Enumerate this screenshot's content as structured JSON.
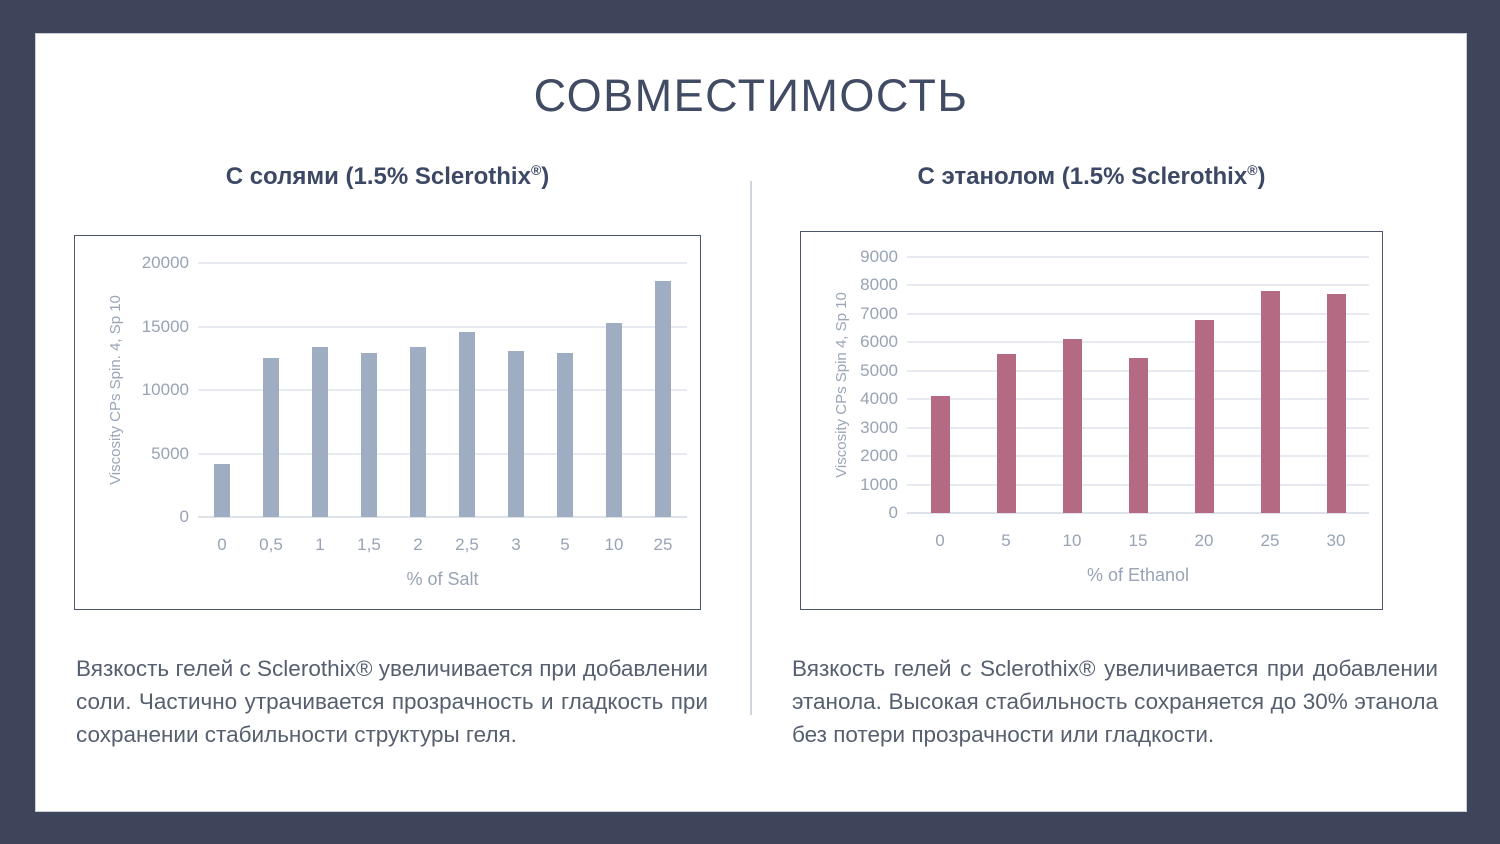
{
  "slide": {
    "title": "СОВМЕСТИМОСТЬ",
    "background_color": "#3e455a",
    "card_color": "#ffffff"
  },
  "panels": [
    {
      "title_main": "С солями (1.5% Sclerothix",
      "title_sup": "®",
      "title_end": ")",
      "description": "Вязкость гелей с Sclerothix® увеличивается при добавлении соли. Частично утрачивается прозрачность и гладкость при сохранении стабильности структуры геля."
    },
    {
      "title_main": "С этанолом (1.5% Sclerothix",
      "title_sup": "®",
      "title_end": ")",
      "description": "Вязкость гелей с Sclerothix® увеличивается при добавлении этанола. Высокая стабильность сохраняется до 30% этанола без потери прозрачности или гладкости."
    }
  ],
  "chart_data": [
    {
      "type": "bar",
      "title": "С солями (1.5% Sclerothix®)",
      "categories": [
        "0",
        "0,5",
        "1",
        "1,5",
        "2",
        "2,5",
        "3",
        "5",
        "10",
        "25"
      ],
      "values": [
        4200,
        12500,
        13350,
        12950,
        13400,
        14600,
        13100,
        12950,
        15300,
        18600
      ],
      "xlabel": "% of Salt",
      "ylabel": "Viscosity CPs Spin. 4, Sp 10",
      "ylim": [
        0,
        20000
      ],
      "ytick_step": 5000,
      "bar_color": "#9fadc2",
      "grid": true,
      "legend": "none"
    },
    {
      "type": "bar",
      "title": "С этанолом (1.5% Sclerothix®)",
      "categories": [
        "0",
        "5",
        "10",
        "15",
        "20",
        "25",
        "30"
      ],
      "values": [
        4100,
        5600,
        6100,
        5450,
        6800,
        7800,
        7700
      ],
      "xlabel": "% of Ethanol",
      "ylabel": "Viscosity CPs Spin 4, Sp 10",
      "ylim": [
        0,
        9000
      ],
      "ytick_step": 1000,
      "bar_color": "#b46a83",
      "grid": true,
      "legend": "none"
    }
  ]
}
